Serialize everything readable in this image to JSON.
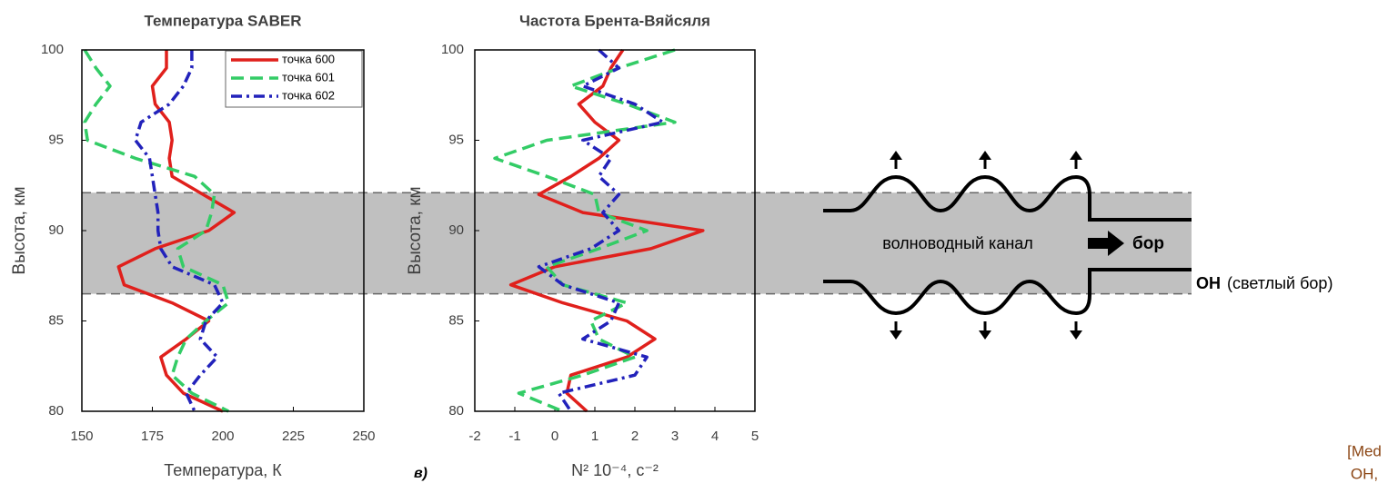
{
  "chart_data": [
    {
      "type": "line",
      "title": "Температура SABER",
      "xlabel": "Температура, К",
      "ylabel": "Высота, км",
      "xlim": [
        150,
        250
      ],
      "xticks": [
        150,
        175,
        200,
        225,
        250
      ],
      "ylim": [
        80,
        100
      ],
      "yticks": [
        80,
        85,
        90,
        95,
        100
      ],
      "legend": "upper right",
      "y": [
        100,
        99,
        98,
        97,
        96,
        95,
        94,
        93,
        92,
        91,
        90,
        89,
        88,
        87,
        86,
        85,
        84,
        83,
        82,
        81,
        80
      ],
      "series": [
        {
          "name": "точка 600",
          "color": "#e0201c",
          "dash": "solid",
          "values": [
            180,
            180,
            175,
            176,
            181,
            182,
            181,
            182,
            193,
            204,
            195,
            176,
            163,
            165,
            182,
            195,
            187,
            178,
            180,
            186,
            200
          ]
        },
        {
          "name": "точка 601",
          "color": "#33cc66",
          "dash": "dashed",
          "values": [
            151,
            155,
            160,
            155,
            151,
            152,
            169,
            190,
            197,
            196,
            194,
            184,
            186,
            200,
            202,
            194,
            187,
            184,
            182,
            189,
            202
          ]
        },
        {
          "name": "точка 602",
          "color": "#2222bb",
          "dash": "dashdot",
          "values": [
            189,
            189,
            186,
            181,
            171,
            169,
            174,
            175,
            176,
            177,
            177,
            178,
            182,
            197,
            200,
            194,
            192,
            198,
            192,
            187,
            190
          ]
        }
      ]
    },
    {
      "type": "line",
      "title": "Частота Брента-Вяйсяля",
      "xlabel": "N² 10⁻⁴, с⁻²",
      "ylabel": "Высота, км",
      "xlim": [
        -2,
        5
      ],
      "xticks": [
        -2,
        -1,
        0,
        1,
        2,
        3,
        4,
        5
      ],
      "ylim": [
        80,
        100
      ],
      "yticks": [
        80,
        85,
        90,
        95,
        100
      ],
      "y": [
        100,
        99,
        98,
        97,
        96,
        95,
        94,
        93,
        92,
        91,
        90,
        89,
        88,
        87,
        86,
        85,
        84,
        83,
        82,
        81,
        80
      ],
      "series": [
        {
          "color": "#e0201c",
          "dash": "solid",
          "values": [
            1.7,
            1.4,
            1.2,
            0.6,
            1.0,
            1.6,
            1.1,
            0.4,
            -0.4,
            0.7,
            3.7,
            2.4,
            0,
            -1.1,
            0.2,
            1.8,
            2.5,
            1.8,
            0.4,
            0.3,
            0.8
          ]
        },
        {
          "color": "#33cc66",
          "dash": "dashed",
          "values": [
            3.0,
            1.6,
            0.4,
            1.8,
            3.0,
            -0.2,
            -1.5,
            -0.2,
            1.0,
            1.1,
            2.3,
            1.1,
            -0.2,
            0.2,
            1.8,
            0.9,
            1.1,
            2.0,
            0.7,
            -0.9,
            0.2
          ]
        },
        {
          "color": "#2222bb",
          "dash": "dashdot",
          "values": [
            1.1,
            1.6,
            0.7,
            2.0,
            2.7,
            0.7,
            1.4,
            1.1,
            1.6,
            1.2,
            1.6,
            0.9,
            -0.4,
            0.2,
            1.6,
            1.4,
            0.7,
            2.3,
            2.0,
            0.1,
            0.4
          ]
        }
      ]
    }
  ],
  "band": [
    86.5,
    92.1
  ],
  "panel_label": "в)",
  "diagram": {
    "channel": "волноводный канал",
    "bore": "бор",
    "oh": "OH",
    "oh_note": "(светлый бор)"
  },
  "citation": [
    "[Med",
    "OH,"
  ]
}
